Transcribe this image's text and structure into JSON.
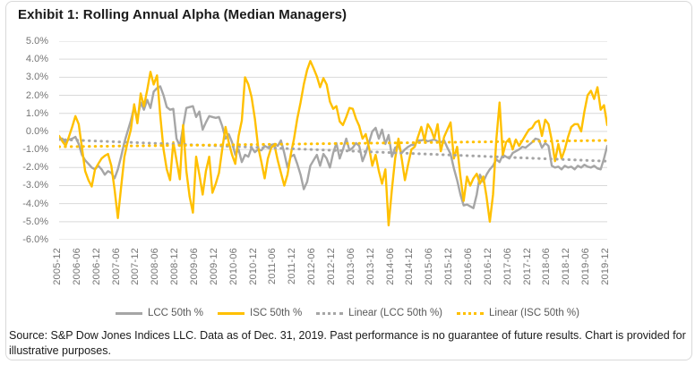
{
  "title": "Exhibit 1: Rolling Annual Alpha (Median Managers)",
  "source_note": "Source: S&P Dow Jones Indices LLC. Data as of Dec. 31, 2019. Past performance is no guarantee of future results. Chart is provided for illustrative purposes.",
  "colors": {
    "isc_gold": "#FFC000",
    "lcc_gray": "#A6A6A6",
    "gridline": "#D9D9D9",
    "axis_text": "#757575",
    "legend_text": "#595959"
  },
  "chart_data": {
    "type": "line",
    "title": "Exhibit 1: Rolling Annual Alpha (Median Managers)",
    "x_frequency": "monthly",
    "x_start": "2005-12",
    "x_end": "2019-12",
    "ylim": [
      -6,
      5
    ],
    "grid": true,
    "legend_position": "bottom",
    "y_tick_labels": [
      "5.0%",
      "4.0%",
      "3.0%",
      "2.0%",
      "1.0%",
      "0.0%",
      "-1.0%",
      "-2.0%",
      "-3.0%",
      "-4.0%",
      "-5.0%",
      "-6.0%"
    ],
    "x_tick_labels": [
      "2005-12",
      "2006-06",
      "2006-12",
      "2007-06",
      "2007-12",
      "2008-06",
      "2008-12",
      "2009-06",
      "2009-12",
      "2010-06",
      "2010-12",
      "2011-06",
      "2011-12",
      "2012-06",
      "2012-12",
      "2013-06",
      "2013-12",
      "2014-06",
      "2014-12",
      "2015-06",
      "2015-12",
      "2016-06",
      "2016-12",
      "2017-06",
      "2017-12",
      "2018-06",
      "2018-12",
      "2019-06",
      "2019-12"
    ],
    "x_tick_every_n_points": 6,
    "series": [
      {
        "name": "LCC 50th %",
        "style": "solid",
        "color": "#A6A6A6",
        "values": [
          -0.4,
          -0.4,
          -0.6,
          -0.45,
          -0.4,
          -0.3,
          -0.7,
          -1.3,
          -1.6,
          -1.8,
          -2.0,
          -2.1,
          -1.9,
          -2.1,
          -2.4,
          -2.2,
          -2.3,
          -2.6,
          -2.1,
          -1.4,
          -0.6,
          0.0,
          0.6,
          1.35,
          0.7,
          1.6,
          1.2,
          1.75,
          1.3,
          2.2,
          2.4,
          2.5,
          2.0,
          1.35,
          1.2,
          1.25,
          -0.4,
          -0.8,
          0.25,
          1.3,
          1.35,
          1.4,
          0.8,
          1.1,
          0.1,
          0.5,
          0.85,
          0.8,
          0.75,
          0.8,
          0.3,
          -0.4,
          -0.15,
          -0.6,
          -1.3,
          -1.0,
          -1.7,
          -1.3,
          -1.4,
          -0.9,
          -1.15,
          -1.0,
          -1.05,
          -0.8,
          -0.9,
          -0.75,
          -0.7,
          -0.8,
          -0.5,
          -1.2,
          -2.0,
          -1.4,
          -1.3,
          -1.8,
          -2.4,
          -3.2,
          -2.8,
          -1.9,
          -1.6,
          -1.3,
          -1.9,
          -1.25,
          -1.5,
          -2.0,
          -1.2,
          -0.65,
          -1.5,
          -1.0,
          -0.4,
          -1.05,
          -0.9,
          -0.65,
          -0.8,
          -1.65,
          -1.2,
          -0.6,
          0.0,
          0.2,
          -0.4,
          0.1,
          -0.7,
          -0.2,
          -1.4,
          -0.9,
          -0.8,
          -1.2,
          -1.0,
          -0.85,
          -0.75,
          -0.75,
          -0.5,
          -0.5,
          -0.45,
          -0.55,
          -0.5,
          -0.45,
          -0.55,
          -0.6,
          -0.5,
          -0.9,
          -1.25,
          -2.05,
          -2.7,
          -3.5,
          -4.1,
          -4.05,
          -4.15,
          -4.25,
          -3.5,
          -2.4,
          -2.8,
          -2.4,
          -2.1,
          -1.9,
          -1.55,
          -1.7,
          -1.3,
          -1.4,
          -1.5,
          -1.2,
          -1.1,
          -1.0,
          -0.85,
          -0.9,
          -0.75,
          -0.6,
          -0.4,
          -0.45,
          -0.9,
          -0.65,
          -0.8,
          -1.9,
          -2.0,
          -1.95,
          -2.1,
          -1.9,
          -2.0,
          -1.95,
          -2.1,
          -1.9,
          -2.0,
          -1.85,
          -1.95,
          -2.0,
          -1.9,
          -2.05,
          -2.1,
          -1.5,
          -0.8
        ]
      },
      {
        "name": "ISC 50th %",
        "style": "solid",
        "color": "#FFC000",
        "values": [
          -0.25,
          -0.55,
          -0.8,
          -0.3,
          0.25,
          0.85,
          0.4,
          -0.9,
          -2.2,
          -2.7,
          -3.05,
          -2.1,
          -1.8,
          -1.5,
          -1.35,
          -1.25,
          -1.9,
          -3.2,
          -4.8,
          -3.1,
          -1.4,
          -0.6,
          0.1,
          1.5,
          0.45,
          2.1,
          1.4,
          2.3,
          3.3,
          2.6,
          3.1,
          0.9,
          -1.0,
          -2.1,
          -2.7,
          -0.6,
          -1.6,
          -2.65,
          0.35,
          -2.2,
          -3.6,
          -4.5,
          -1.4,
          -2.4,
          -3.5,
          -2.2,
          -1.4,
          -3.4,
          -2.9,
          -2.3,
          -1.0,
          0.25,
          -0.6,
          -1.3,
          -1.8,
          -0.25,
          0.6,
          3.0,
          2.6,
          1.9,
          0.7,
          -0.85,
          -1.7,
          -2.6,
          -1.5,
          -0.9,
          -0.75,
          -1.6,
          -2.3,
          -3.0,
          -2.4,
          -1.3,
          -0.4,
          0.7,
          1.6,
          2.6,
          3.4,
          3.9,
          3.5,
          3.05,
          2.45,
          2.95,
          2.6,
          1.65,
          1.25,
          1.4,
          0.55,
          0.35,
          0.8,
          1.3,
          1.25,
          0.7,
          0.3,
          -0.4,
          -0.15,
          -0.9,
          -1.9,
          -1.3,
          -2.2,
          -2.9,
          -2.1,
          -5.2,
          -3.2,
          -1.5,
          -0.4,
          -1.5,
          -2.7,
          -1.8,
          -1.0,
          -0.85,
          -0.3,
          0.25,
          -0.5,
          0.4,
          0.1,
          -0.4,
          0.4,
          -1.1,
          -0.3,
          0.1,
          0.5,
          -1.5,
          -0.85,
          -2.5,
          -3.85,
          -2.5,
          -3.0,
          -2.6,
          -2.35,
          -2.9,
          -2.5,
          -3.6,
          -5.0,
          -3.5,
          -0.5,
          1.6,
          -1.3,
          -0.6,
          -0.4,
          -1.0,
          -0.45,
          -0.8,
          -0.5,
          -0.2,
          0.1,
          0.2,
          0.5,
          0.6,
          -0.25,
          0.65,
          0.4,
          -0.5,
          -1.65,
          -0.7,
          -1.5,
          -1.0,
          -0.3,
          0.25,
          0.4,
          0.4,
          0.0,
          1.1,
          2.0,
          2.25,
          1.8,
          2.45,
          1.2,
          1.45,
          0.35
        ]
      },
      {
        "name": "Linear (LCC 50th %)",
        "style": "dotted",
        "color": "#A6A6A6",
        "trend": {
          "start": -0.45,
          "end": -1.65
        }
      },
      {
        "name": "Linear (ISC 50th %)",
        "style": "dotted",
        "color": "#FFC000",
        "trend": {
          "start": -0.85,
          "end": -0.5
        }
      }
    ]
  }
}
